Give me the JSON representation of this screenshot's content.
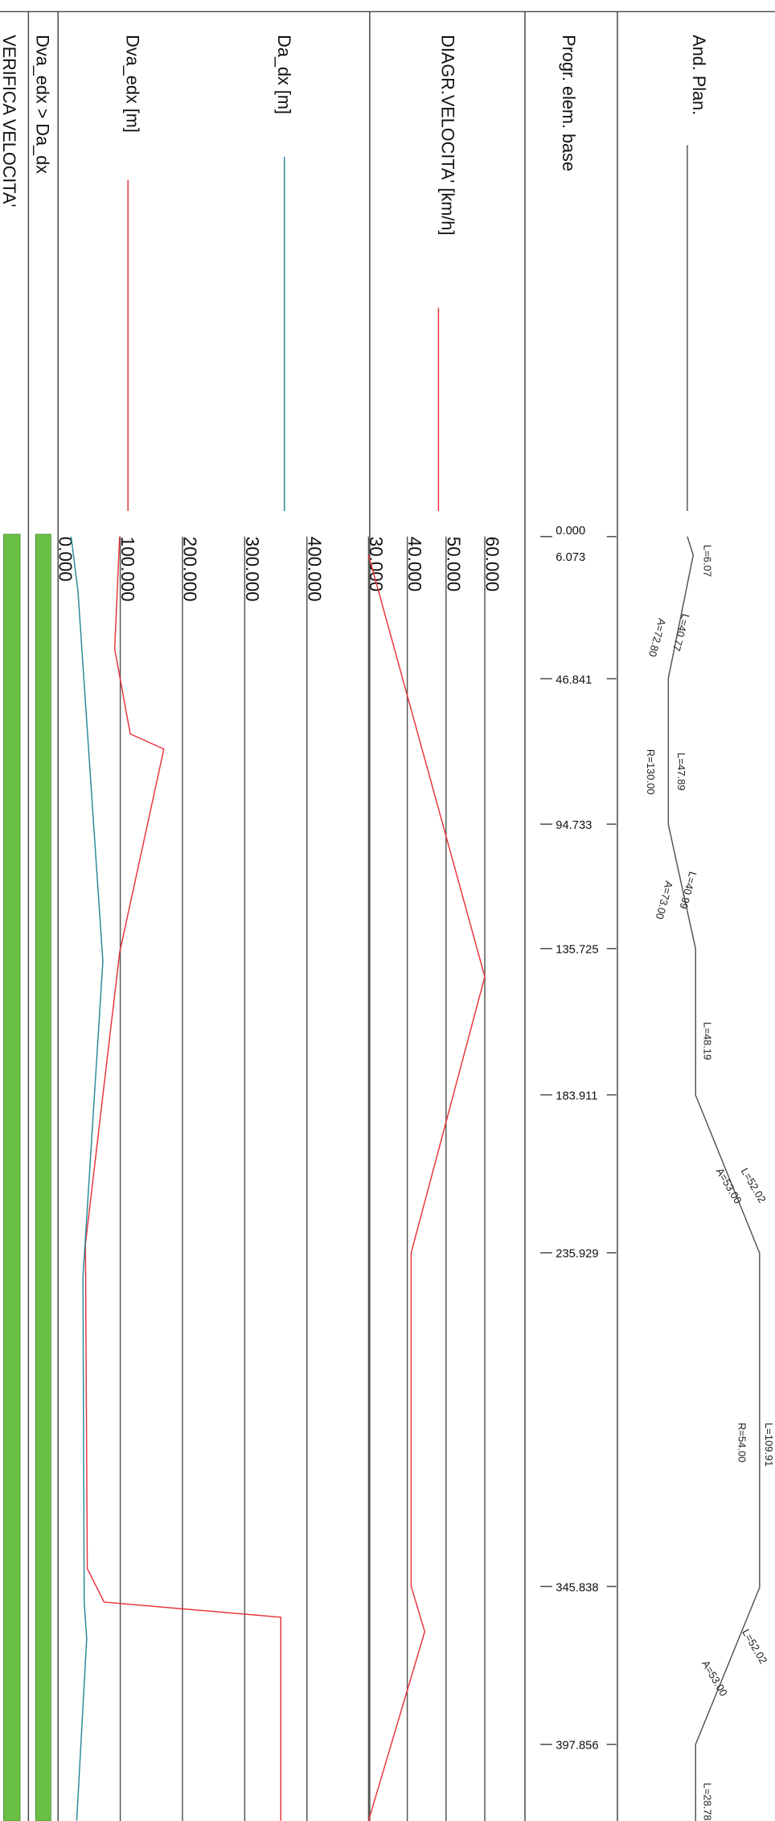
{
  "rows": [
    "VERIFICA VELOCITA'",
    "Dva_edx > Da_dx",
    "Dva_edx [m]",
    "Da_dx [m]",
    "DIAGR.VELOCITA' [km/h]",
    "Progr. elem. base",
    "And. Plan."
  ],
  "stations": [
    {
      "value": 0,
      "label": "0.000"
    },
    {
      "value": 6.073,
      "label": "6.073"
    },
    {
      "value": 46.841,
      "label": "46.841"
    },
    {
      "value": 94.733,
      "label": "94.733"
    },
    {
      "value": 135.725,
      "label": "135.725"
    },
    {
      "value": 183.911,
      "label": "183.911"
    },
    {
      "value": 235.929,
      "label": "235.929"
    },
    {
      "value": 345.838,
      "label": "345.838"
    },
    {
      "value": 397.856,
      "label": "397.856"
    }
  ],
  "plan_labels": [
    "L=6.07",
    "L=40.77",
    "A=72.80",
    "L=47.89",
    "R=130.00",
    "L=40.99",
    "A=73.00",
    "L=48.19",
    "L=52.02",
    "A=53.00",
    "L=109.91",
    "R=54.00",
    "L=52.02",
    "A=53.00",
    "L=28.78"
  ],
  "speed_ticks": [
    {
      "value": 30,
      "label": "30.000"
    },
    {
      "value": 40,
      "label": "40.000"
    },
    {
      "value": 50,
      "label": "50.000"
    },
    {
      "value": 60,
      "label": "60.000"
    }
  ],
  "distance_ticks": [
    {
      "value": 0,
      "label": "0.000"
    },
    {
      "value": 100,
      "label": "100.000"
    },
    {
      "value": 200,
      "label": "200.000"
    },
    {
      "value": 300,
      "label": "300.000"
    },
    {
      "value": 400,
      "label": "400.000"
    }
  ],
  "speed": {
    "color": "#e8343c",
    "x": [
      6.073,
      145,
      235.929,
      345.838,
      360.7,
      423
    ],
    "values": [
      30,
      60,
      41,
      41,
      44.5,
      30
    ]
  },
  "dva_edx": {
    "color": "#e8343c",
    "x": [
      0,
      37,
      65,
      70,
      137,
      233,
      340,
      351,
      356,
      423
    ],
    "values": [
      99,
      91,
      116,
      170,
      99,
      44,
      47,
      74,
      358,
      358
    ]
  },
  "da_dx": {
    "color": "#2a8a9a",
    "x": [
      0,
      18,
      140,
      244,
      351,
      363,
      423
    ],
    "values": [
      21,
      32,
      72,
      40,
      42,
      46,
      30
    ]
  }
}
